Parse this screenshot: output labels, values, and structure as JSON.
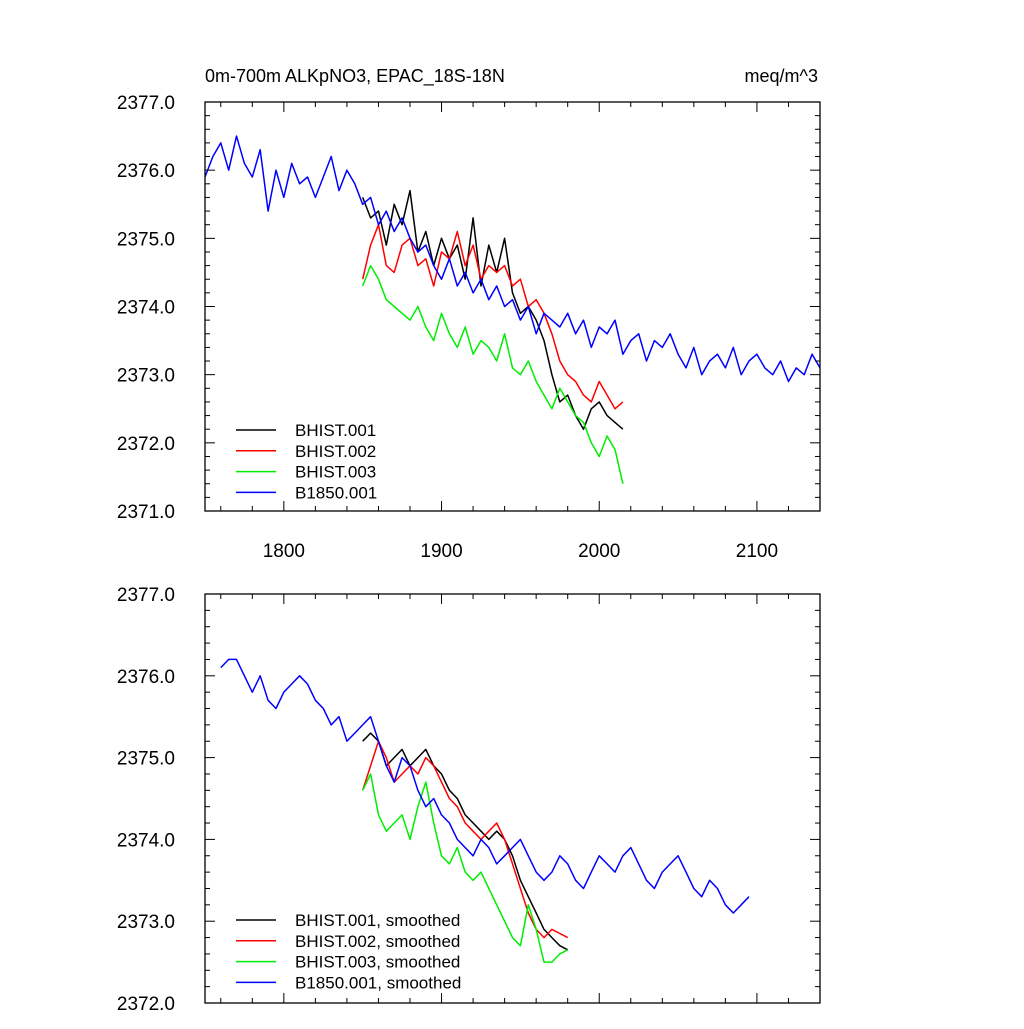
{
  "chart_data": [
    {
      "type": "line",
      "title": "0m-700m ALKpNO3, EPAC_18S-18N",
      "units": "meq/m^3",
      "xlim": [
        1750,
        2140
      ],
      "ylim": [
        2371.0,
        2377.0
      ],
      "x_ticks": [
        1800,
        1900,
        2000,
        2100
      ],
      "x_tick_labels": [
        "1800",
        "1900",
        "2000",
        "2100"
      ],
      "y_ticks": [
        2371.0,
        2372.0,
        2373.0,
        2374.0,
        2375.0,
        2376.0,
        2377.0
      ],
      "y_tick_labels": [
        "2371.0",
        "2372.0",
        "2373.0",
        "2374.0",
        "2375.0",
        "2376.0",
        "2377.0"
      ],
      "legend": "bottom-left",
      "series": [
        {
          "name": "BHIST.001",
          "color": "#000000",
          "x_start": 1850,
          "x_step": 5,
          "values": [
            2375.6,
            2375.3,
            2375.4,
            2374.9,
            2375.5,
            2375.2,
            2375.7,
            2374.8,
            2375.1,
            2374.6,
            2375.0,
            2374.7,
            2374.9,
            2374.4,
            2375.3,
            2374.3,
            2374.9,
            2374.5,
            2375.0,
            2374.2,
            2373.9,
            2374.0,
            2373.8,
            2373.5,
            2373.0,
            2372.6,
            2372.7,
            2372.4,
            2372.2,
            2372.5,
            2372.6,
            2372.4,
            2372.3,
            2372.2
          ]
        },
        {
          "name": "BHIST.002",
          "color": "#ff0000",
          "x_start": 1850,
          "x_step": 5,
          "values": [
            2374.4,
            2374.9,
            2375.2,
            2374.6,
            2374.5,
            2374.9,
            2375.0,
            2374.6,
            2374.7,
            2374.3,
            2374.8,
            2374.7,
            2375.1,
            2374.6,
            2374.9,
            2374.4,
            2374.6,
            2374.5,
            2374.6,
            2374.3,
            2374.4,
            2374.0,
            2374.1,
            2373.9,
            2373.6,
            2373.2,
            2373.0,
            2372.9,
            2372.7,
            2372.6,
            2372.9,
            2372.7,
            2372.5,
            2372.6
          ]
        },
        {
          "name": "BHIST.003",
          "color": "#00ee00",
          "x_start": 1850,
          "x_step": 5,
          "values": [
            2374.3,
            2374.6,
            2374.4,
            2374.1,
            2374.0,
            2373.9,
            2373.8,
            2374.0,
            2373.7,
            2373.5,
            2373.9,
            2373.6,
            2373.4,
            2373.7,
            2373.3,
            2373.5,
            2373.4,
            2373.2,
            2373.6,
            2373.1,
            2373.0,
            2373.2,
            2372.9,
            2372.7,
            2372.5,
            2372.8,
            2372.6,
            2372.4,
            2372.3,
            2372.0,
            2371.8,
            2372.1,
            2371.9,
            2371.4
          ]
        },
        {
          "name": "B1850.001",
          "color": "#0000ff",
          "x_start": 1750,
          "x_step": 5,
          "values": [
            2375.9,
            2376.2,
            2376.4,
            2376.0,
            2376.5,
            2376.1,
            2375.9,
            2376.3,
            2375.4,
            2376.0,
            2375.6,
            2376.1,
            2375.8,
            2375.9,
            2375.6,
            2375.9,
            2376.2,
            2375.7,
            2376.0,
            2375.8,
            2375.5,
            2375.6,
            2375.2,
            2375.4,
            2375.1,
            2375.3,
            2375.0,
            2374.8,
            2374.9,
            2374.6,
            2374.4,
            2374.7,
            2374.3,
            2374.5,
            2374.2,
            2374.4,
            2374.1,
            2374.3,
            2374.0,
            2374.1,
            2373.8,
            2374.0,
            2373.6,
            2373.9,
            2373.8,
            2373.7,
            2373.9,
            2373.6,
            2373.8,
            2373.4,
            2373.7,
            2373.6,
            2373.8,
            2373.3,
            2373.5,
            2373.6,
            2373.2,
            2373.5,
            2373.4,
            2373.6,
            2373.3,
            2373.1,
            2373.4,
            2373.0,
            2373.2,
            2373.3,
            2373.1,
            2373.4,
            2373.0,
            2373.2,
            2373.3,
            2373.1,
            2373.0,
            2373.2,
            2372.9,
            2373.1,
            2373.0,
            2373.3,
            2373.1
          ]
        }
      ]
    },
    {
      "type": "line",
      "xlim": [
        1750,
        2140
      ],
      "ylim": [
        2372.0,
        2377.0
      ],
      "x_ticks": [
        1800,
        1900,
        2000,
        2100
      ],
      "y_ticks": [
        2372.0,
        2373.0,
        2374.0,
        2375.0,
        2376.0,
        2377.0
      ],
      "y_tick_labels": [
        "2372.0",
        "2373.0",
        "2374.0",
        "2375.0",
        "2376.0",
        "2377.0"
      ],
      "legend": "bottom-left",
      "series": [
        {
          "name": "BHIST.001, smoothed",
          "color": "#000000",
          "x_start": 1850,
          "x_step": 5,
          "values": [
            2375.2,
            2375.3,
            2375.2,
            2374.9,
            2375.0,
            2375.1,
            2374.9,
            2375.0,
            2375.1,
            2374.9,
            2374.8,
            2374.6,
            2374.5,
            2374.3,
            2374.2,
            2374.1,
            2374.0,
            2374.1,
            2374.0,
            2373.8,
            2373.5,
            2373.3,
            2373.1,
            2372.9,
            2372.8,
            2372.7,
            2372.65
          ]
        },
        {
          "name": "BHIST.002, smoothed",
          "color": "#ff0000",
          "x_start": 1850,
          "x_step": 5,
          "values": [
            2374.6,
            2374.9,
            2375.2,
            2375.0,
            2374.7,
            2374.8,
            2374.9,
            2374.8,
            2375.0,
            2374.9,
            2374.7,
            2374.5,
            2374.4,
            2374.2,
            2374.1,
            2374.0,
            2374.1,
            2374.2,
            2374.0,
            2373.7,
            2373.4,
            2373.1,
            2372.9,
            2372.8,
            2372.9,
            2372.85,
            2372.8
          ]
        },
        {
          "name": "BHIST.003, smoothed",
          "color": "#00ee00",
          "x_start": 1850,
          "x_step": 5,
          "values": [
            2374.6,
            2374.8,
            2374.3,
            2374.1,
            2374.2,
            2374.3,
            2374.0,
            2374.4,
            2374.7,
            2374.2,
            2373.8,
            2373.7,
            2373.9,
            2373.6,
            2373.5,
            2373.6,
            2373.4,
            2373.2,
            2373.0,
            2372.8,
            2372.7,
            2373.2,
            2372.9,
            2372.5,
            2372.5,
            2372.6,
            2372.65
          ]
        },
        {
          "name": "B1850.001, smoothed",
          "color": "#0000ff",
          "x_start": 1760,
          "x_step": 5,
          "values": [
            2376.1,
            2376.2,
            2376.2,
            2376.0,
            2375.8,
            2376.0,
            2375.7,
            2375.6,
            2375.8,
            2375.9,
            2376.0,
            2375.9,
            2375.7,
            2375.6,
            2375.4,
            2375.5,
            2375.2,
            2375.3,
            2375.4,
            2375.5,
            2375.2,
            2374.9,
            2374.7,
            2375.0,
            2374.9,
            2374.6,
            2374.4,
            2374.5,
            2374.3,
            2374.2,
            2374.0,
            2373.9,
            2373.8,
            2374.0,
            2373.9,
            2373.7,
            2373.8,
            2373.9,
            2374.0,
            2373.8,
            2373.6,
            2373.5,
            2373.6,
            2373.8,
            2373.7,
            2373.5,
            2373.4,
            2373.6,
            2373.8,
            2373.7,
            2373.6,
            2373.8,
            2373.9,
            2373.7,
            2373.5,
            2373.4,
            2373.6,
            2373.7,
            2373.8,
            2373.6,
            2373.4,
            2373.3,
            2373.5,
            2373.4,
            2373.2,
            2373.1,
            2373.2,
            2373.3
          ]
        }
      ]
    }
  ]
}
